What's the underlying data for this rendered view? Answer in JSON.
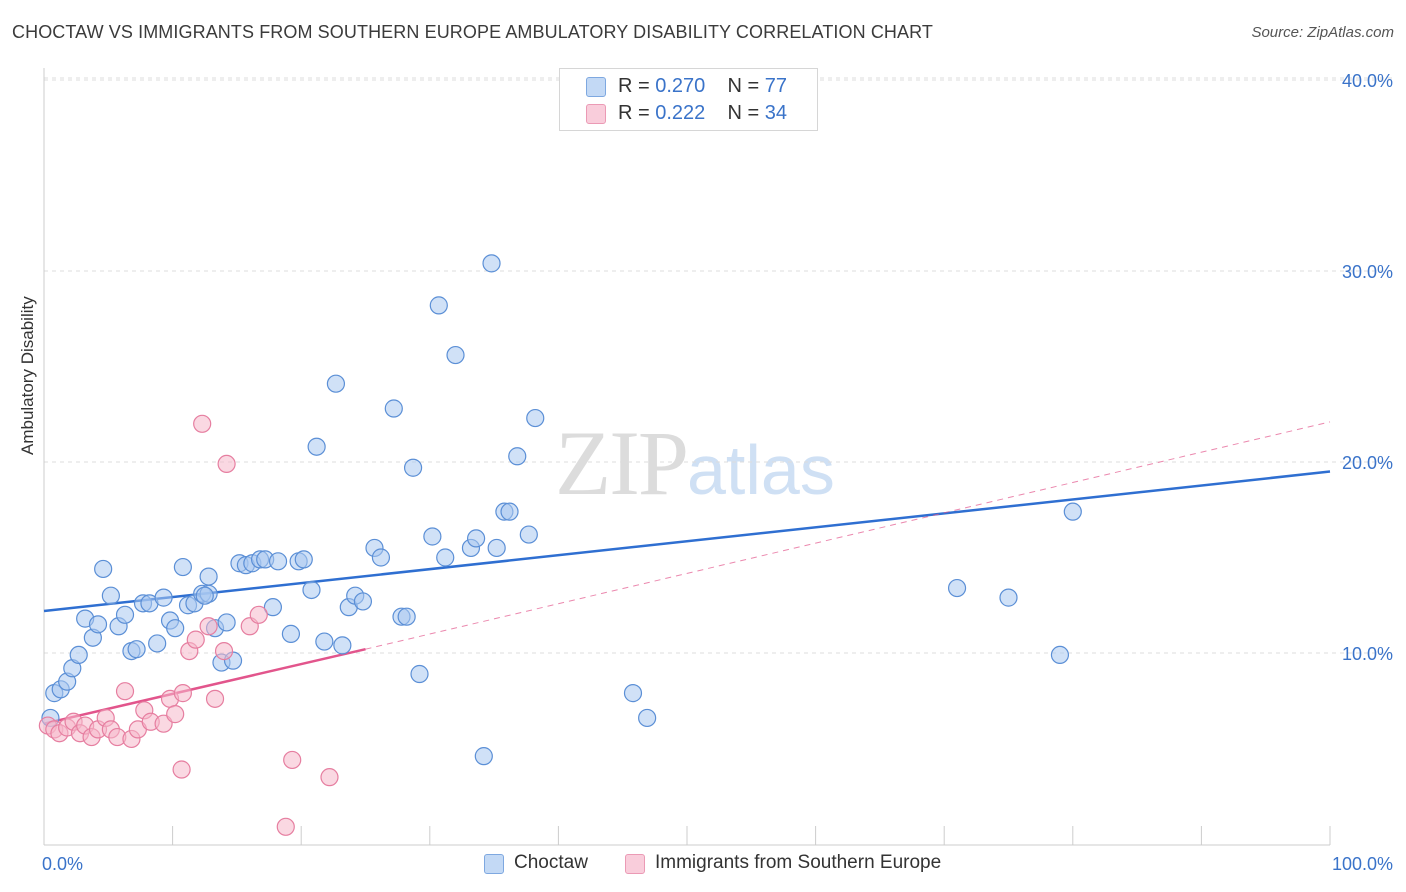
{
  "header": {
    "title": "CHOCTAW VS IMMIGRANTS FROM SOUTHERN EUROPE AMBULATORY DISABILITY CORRELATION CHART",
    "source": "Source: ZipAtlas.com"
  },
  "watermark": {
    "zip": "ZIP",
    "atlas": "atlas"
  },
  "legend_top": [
    {
      "r_label": "R = ",
      "r_value": "0.270",
      "n_label": "N = ",
      "n_value": "77"
    },
    {
      "r_label": "R = ",
      "r_value": "0.222",
      "n_label": "N = ",
      "n_value": "34"
    }
  ],
  "colors": {
    "choctaw_fill": "#a9c9f0",
    "choctaw_stroke": "#5b8fd6",
    "choctaw_line": "#2f6fd1",
    "immig_fill": "#f5b8ca",
    "immig_stroke": "#e67ea0",
    "immig_line": "#e2558c",
    "grid": "#dddddd",
    "axis_text": "#3a73c9"
  },
  "chart_data": {
    "type": "scatter",
    "title": "CHOCTAW VS IMMIGRANTS FROM SOUTHERN EUROPE AMBULATORY DISABILITY CORRELATION CHART",
    "xlabel": "",
    "ylabel": "Ambulatory Disability",
    "xlim": [
      0,
      100
    ],
    "ylim": [
      0,
      42
    ],
    "x_tick_labels": [
      "0.0%",
      "100.0%"
    ],
    "y_ticks": [
      10,
      20,
      30,
      40
    ],
    "y_tick_labels": [
      "10.0%",
      "20.0%",
      "30.0%",
      "40.0%"
    ],
    "grid": true,
    "series": [
      {
        "name": "Choctaw",
        "R": 0.27,
        "N": 77,
        "trend": {
          "x": [
            0,
            100
          ],
          "y": [
            12.2,
            19.5
          ],
          "dashed_extension": false
        },
        "points": [
          [
            0.5,
            6.6
          ],
          [
            0.8,
            7.9
          ],
          [
            1.3,
            8.1
          ],
          [
            1.8,
            8.5
          ],
          [
            2.2,
            9.2
          ],
          [
            2.7,
            9.9
          ],
          [
            3.2,
            11.8
          ],
          [
            3.8,
            10.8
          ],
          [
            4.2,
            11.5
          ],
          [
            4.6,
            14.4
          ],
          [
            5.2,
            13.0
          ],
          [
            5.8,
            11.4
          ],
          [
            6.3,
            12.0
          ],
          [
            6.8,
            10.1
          ],
          [
            7.2,
            10.2
          ],
          [
            7.7,
            12.6
          ],
          [
            8.2,
            12.6
          ],
          [
            8.8,
            10.5
          ],
          [
            9.3,
            12.9
          ],
          [
            9.8,
            11.7
          ],
          [
            10.2,
            11.3
          ],
          [
            10.8,
            14.5
          ],
          [
            11.2,
            12.5
          ],
          [
            11.7,
            12.6
          ],
          [
            12.3,
            13.1
          ],
          [
            12.8,
            13.1
          ],
          [
            12.8,
            14.0
          ],
          [
            13.3,
            11.3
          ],
          [
            13.8,
            9.5
          ],
          [
            14.2,
            11.6
          ],
          [
            14.7,
            9.6
          ],
          [
            15.2,
            14.7
          ],
          [
            15.7,
            14.6
          ],
          [
            16.2,
            14.7
          ],
          [
            16.8,
            14.9
          ],
          [
            17.2,
            14.9
          ],
          [
            18.2,
            14.8
          ],
          [
            17.8,
            12.4
          ],
          [
            19.2,
            11.0
          ],
          [
            19.8,
            14.8
          ],
          [
            20.2,
            14.9
          ],
          [
            20.8,
            13.3
          ],
          [
            21.2,
            20.8
          ],
          [
            21.8,
            10.6
          ],
          [
            22.7,
            24.1
          ],
          [
            23.2,
            10.4
          ],
          [
            23.7,
            12.4
          ],
          [
            24.2,
            13.0
          ],
          [
            24.8,
            12.7
          ],
          [
            25.7,
            15.5
          ],
          [
            26.2,
            15.0
          ],
          [
            27.2,
            22.8
          ],
          [
            27.8,
            11.9
          ],
          [
            28.2,
            11.9
          ],
          [
            28.7,
            19.7
          ],
          [
            29.2,
            8.9
          ],
          [
            30.2,
            16.1
          ],
          [
            30.7,
            28.2
          ],
          [
            31.2,
            15.0
          ],
          [
            32.0,
            25.6
          ],
          [
            33.2,
            15.5
          ],
          [
            33.6,
            16.0
          ],
          [
            34.2,
            4.6
          ],
          [
            34.8,
            30.4
          ],
          [
            35.2,
            15.5
          ],
          [
            35.8,
            17.4
          ],
          [
            36.2,
            17.4
          ],
          [
            36.8,
            20.3
          ],
          [
            37.7,
            16.2
          ],
          [
            38.2,
            22.3
          ],
          [
            45.8,
            7.9
          ],
          [
            46.9,
            6.6
          ],
          [
            71.0,
            13.4
          ],
          [
            75.0,
            12.9
          ],
          [
            79.0,
            9.9
          ],
          [
            80.0,
            17.4
          ],
          [
            12.5,
            13.0
          ]
        ]
      },
      {
        "name": "Immigrants from Southern Europe",
        "R": 0.222,
        "N": 34,
        "trend": {
          "x": [
            0,
            25
          ],
          "y": [
            6.3,
            10.2
          ],
          "dashed_extension": {
            "x": [
              25,
              100
            ],
            "y": [
              10.2,
              22.1
            ]
          }
        },
        "points": [
          [
            0.3,
            6.2
          ],
          [
            0.8,
            6.0
          ],
          [
            1.2,
            5.8
          ],
          [
            1.8,
            6.1
          ],
          [
            2.3,
            6.4
          ],
          [
            2.8,
            5.8
          ],
          [
            3.2,
            6.2
          ],
          [
            3.7,
            5.6
          ],
          [
            4.2,
            6.0
          ],
          [
            4.8,
            6.6
          ],
          [
            5.2,
            6.0
          ],
          [
            5.7,
            5.6
          ],
          [
            6.3,
            8.0
          ],
          [
            6.8,
            5.5
          ],
          [
            7.3,
            6.0
          ],
          [
            7.8,
            7.0
          ],
          [
            8.3,
            6.4
          ],
          [
            9.3,
            6.3
          ],
          [
            9.8,
            7.6
          ],
          [
            10.2,
            6.8
          ],
          [
            10.7,
            3.9
          ],
          [
            10.8,
            7.9
          ],
          [
            11.3,
            10.1
          ],
          [
            11.8,
            10.7
          ],
          [
            12.3,
            22.0
          ],
          [
            12.8,
            11.4
          ],
          [
            13.3,
            7.6
          ],
          [
            14.0,
            10.1
          ],
          [
            14.2,
            19.9
          ],
          [
            16.0,
            11.4
          ],
          [
            16.7,
            12.0
          ],
          [
            18.8,
            0.9
          ],
          [
            19.3,
            4.4
          ],
          [
            22.2,
            3.5
          ]
        ]
      }
    ]
  },
  "legend_bottom": [
    "Choctaw",
    "Immigrants from Southern Europe"
  ]
}
